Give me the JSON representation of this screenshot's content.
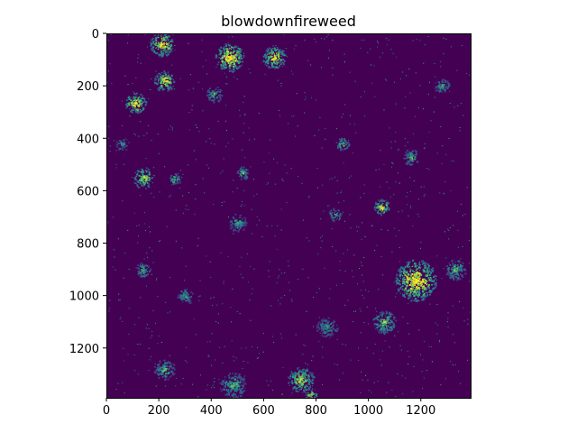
{
  "chart_data": {
    "type": "heatmap",
    "title": "blowdownfireweed",
    "xlabel": "",
    "ylabel": "",
    "xlim": [
      0,
      1390
    ],
    "ylim": [
      1390,
      0
    ],
    "x_ticks": [
      "0",
      "200",
      "400",
      "600",
      "800",
      "1000",
      "1200"
    ],
    "y_ticks": [
      "0",
      "200",
      "400",
      "600",
      "800",
      "1000",
      "1200"
    ],
    "x_tick_values": [
      0,
      200,
      400,
      600,
      800,
      1000,
      1200
    ],
    "y_tick_values": [
      0,
      200,
      400,
      600,
      800,
      1000,
      1200
    ],
    "colormap": "viridis",
    "value_range": [
      0,
      1
    ],
    "background_value": 0,
    "colors": {
      "low": "#440154",
      "mid": "#21918c",
      "high": "#fde725"
    },
    "hotspots": [
      {
        "x": 210,
        "y": 40,
        "r": 45,
        "value": 1.0
      },
      {
        "x": 470,
        "y": 90,
        "r": 55,
        "value": 1.0
      },
      {
        "x": 640,
        "y": 90,
        "r": 45,
        "value": 0.9
      },
      {
        "x": 220,
        "y": 180,
        "r": 40,
        "value": 0.9
      },
      {
        "x": 110,
        "y": 265,
        "r": 40,
        "value": 1.0
      },
      {
        "x": 410,
        "y": 230,
        "r": 30,
        "value": 0.6
      },
      {
        "x": 140,
        "y": 550,
        "r": 40,
        "value": 0.8
      },
      {
        "x": 260,
        "y": 555,
        "r": 25,
        "value": 0.6
      },
      {
        "x": 520,
        "y": 530,
        "r": 25,
        "value": 0.6
      },
      {
        "x": 900,
        "y": 420,
        "r": 25,
        "value": 0.7
      },
      {
        "x": 1160,
        "y": 470,
        "r": 30,
        "value": 0.6
      },
      {
        "x": 1050,
        "y": 660,
        "r": 30,
        "value": 0.9
      },
      {
        "x": 870,
        "y": 690,
        "r": 25,
        "value": 0.6
      },
      {
        "x": 500,
        "y": 720,
        "r": 35,
        "value": 0.5
      },
      {
        "x": 1180,
        "y": 940,
        "r": 80,
        "value": 1.0
      },
      {
        "x": 1060,
        "y": 1100,
        "r": 45,
        "value": 0.7
      },
      {
        "x": 840,
        "y": 1120,
        "r": 40,
        "value": 0.5
      },
      {
        "x": 1330,
        "y": 900,
        "r": 40,
        "value": 0.6
      },
      {
        "x": 740,
        "y": 1320,
        "r": 50,
        "value": 0.8
      },
      {
        "x": 480,
        "y": 1340,
        "r": 50,
        "value": 0.6
      },
      {
        "x": 220,
        "y": 1280,
        "r": 40,
        "value": 0.6
      },
      {
        "x": 140,
        "y": 900,
        "r": 30,
        "value": 0.6
      },
      {
        "x": 300,
        "y": 1000,
        "r": 30,
        "value": 0.5
      },
      {
        "x": 1280,
        "y": 200,
        "r": 30,
        "value": 0.5
      },
      {
        "x": 60,
        "y": 420,
        "r": 25,
        "value": 0.5
      },
      {
        "x": 780,
        "y": 1375,
        "r": 25,
        "value": 0.9
      }
    ]
  }
}
